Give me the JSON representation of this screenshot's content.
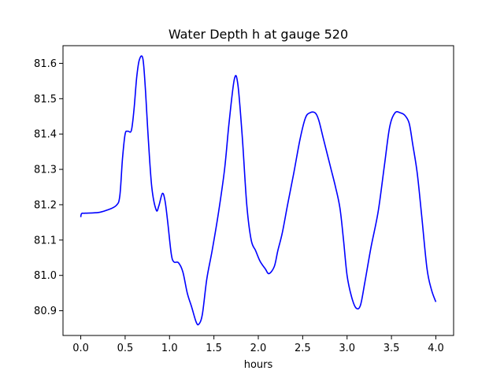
{
  "chart_data": {
    "type": "line",
    "title": "Water Depth h at gauge 520",
    "xlabel": "hours",
    "ylabel": "",
    "xlim": [
      -0.2,
      4.2
    ],
    "ylim": [
      80.83,
      81.65
    ],
    "xticks": [
      0.0,
      0.5,
      1.0,
      1.5,
      2.0,
      2.5,
      3.0,
      3.5,
      4.0
    ],
    "xtick_labels": [
      "0.0",
      "0.5",
      "1.0",
      "1.5",
      "2.0",
      "2.5",
      "3.0",
      "3.5",
      "4.0"
    ],
    "yticks": [
      80.9,
      81.0,
      81.1,
      81.2,
      81.3,
      81.4,
      81.5,
      81.6
    ],
    "ytick_labels": [
      "80.9",
      "81.0",
      "81.1",
      "81.2",
      "81.3",
      "81.4",
      "81.5",
      "81.6"
    ],
    "grid": false,
    "series": [
      {
        "color": "#0000ff",
        "x": [
          0.0,
          0.01,
          0.05,
          0.2,
          0.3,
          0.4,
          0.44,
          0.47,
          0.5,
          0.53,
          0.57,
          0.6,
          0.63,
          0.66,
          0.7,
          0.73,
          0.76,
          0.8,
          0.85,
          0.88,
          0.92,
          0.95,
          0.98,
          1.02,
          1.05,
          1.1,
          1.15,
          1.2,
          1.25,
          1.3,
          1.33,
          1.37,
          1.42,
          1.48,
          1.55,
          1.62,
          1.67,
          1.73,
          1.77,
          1.82,
          1.87,
          1.92,
          1.97,
          2.02,
          2.08,
          2.12,
          2.18,
          2.22,
          2.27,
          2.33,
          2.4,
          2.47,
          2.53,
          2.58,
          2.64,
          2.68,
          2.73,
          2.78,
          2.82,
          2.87,
          2.92,
          2.96,
          3.0,
          3.05,
          3.1,
          3.15,
          3.2,
          3.27,
          3.35,
          3.42,
          3.48,
          3.54,
          3.6,
          3.65,
          3.7,
          3.74,
          3.79,
          3.84,
          3.9,
          3.95,
          4.0
        ],
        "y": [
          81.165,
          81.175,
          81.176,
          81.178,
          81.185,
          81.198,
          81.225,
          81.33,
          81.4,
          81.408,
          81.41,
          81.47,
          81.56,
          81.61,
          81.613,
          81.52,
          81.39,
          81.25,
          81.185,
          81.197,
          81.232,
          81.21,
          81.15,
          81.06,
          81.038,
          81.036,
          81.01,
          80.95,
          80.91,
          80.868,
          80.862,
          80.89,
          80.99,
          81.07,
          81.175,
          81.3,
          81.43,
          81.555,
          81.54,
          81.39,
          81.2,
          81.1,
          81.07,
          81.04,
          81.018,
          81.005,
          81.025,
          81.07,
          81.12,
          81.2,
          81.29,
          81.385,
          81.445,
          81.46,
          81.46,
          81.44,
          81.39,
          81.34,
          81.3,
          81.25,
          81.19,
          81.1,
          81.0,
          80.94,
          80.908,
          80.915,
          80.98,
          81.08,
          81.18,
          81.31,
          81.42,
          81.46,
          81.46,
          81.453,
          81.43,
          81.37,
          81.29,
          81.17,
          81.02,
          80.96,
          80.925
        ]
      }
    ]
  }
}
